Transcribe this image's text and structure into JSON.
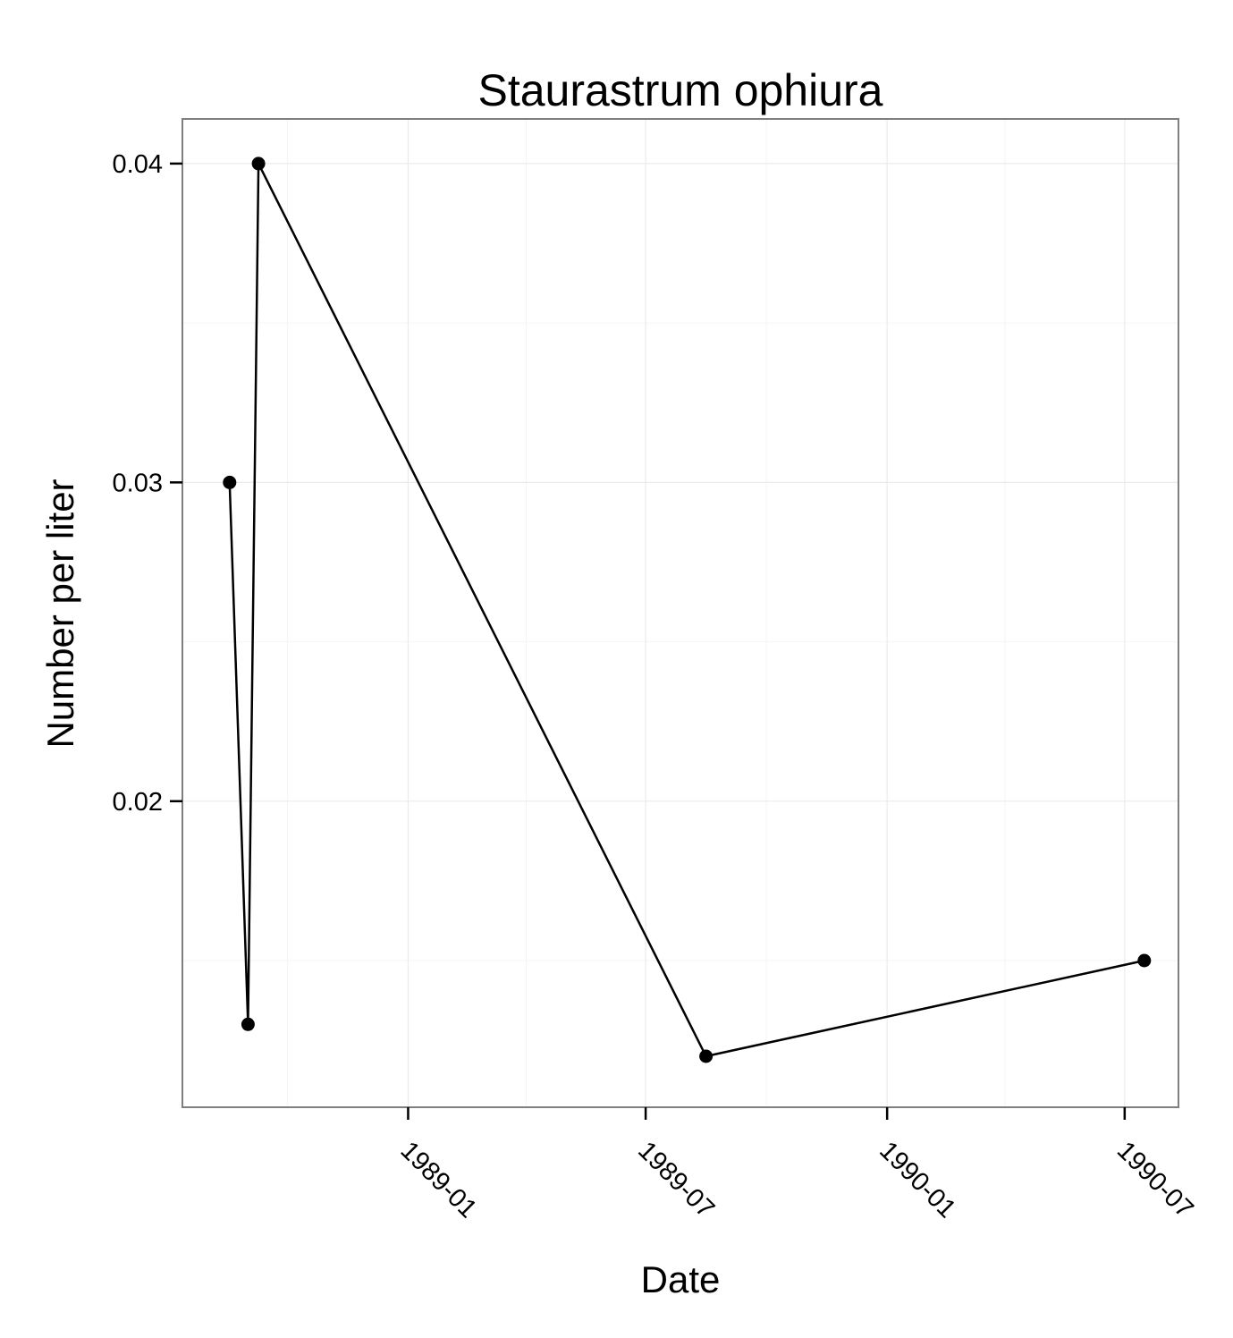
{
  "chart_data": {
    "type": "line",
    "title": "Staurastrum ophiura",
    "xlabel": "Date",
    "ylabel": "Number per liter",
    "x_type": "date",
    "xlim": [
      "1988-07-13",
      "1990-08-11"
    ],
    "ylim": [
      0.0104,
      0.0414
    ],
    "x_ticks": [
      {
        "value": "1989-01-01",
        "label": "1989-01"
      },
      {
        "value": "1989-07-01",
        "label": "1989-07"
      },
      {
        "value": "1990-01-01",
        "label": "1990-01"
      },
      {
        "value": "1990-07-01",
        "label": "1990-07"
      }
    ],
    "x_minor_ticks": [
      "1988-10-01",
      "1989-04-01",
      "1989-10-01",
      "1990-04-01"
    ],
    "y_ticks": [
      {
        "value": 0.02,
        "label": "0.02"
      },
      {
        "value": 0.03,
        "label": "0.03"
      },
      {
        "value": 0.04,
        "label": "0.04"
      }
    ],
    "y_minor_ticks": [
      0.015,
      0.025,
      0.035
    ],
    "grid": true,
    "tick_label_rotation": 45,
    "series": [
      {
        "color": "#000000",
        "x": [
          "1988-08-18",
          "1988-09-01",
          "1988-09-09",
          "1989-08-16",
          "1990-07-16"
        ],
        "y": [
          0.03,
          0.013,
          0.04,
          0.012,
          0.015
        ]
      }
    ]
  }
}
